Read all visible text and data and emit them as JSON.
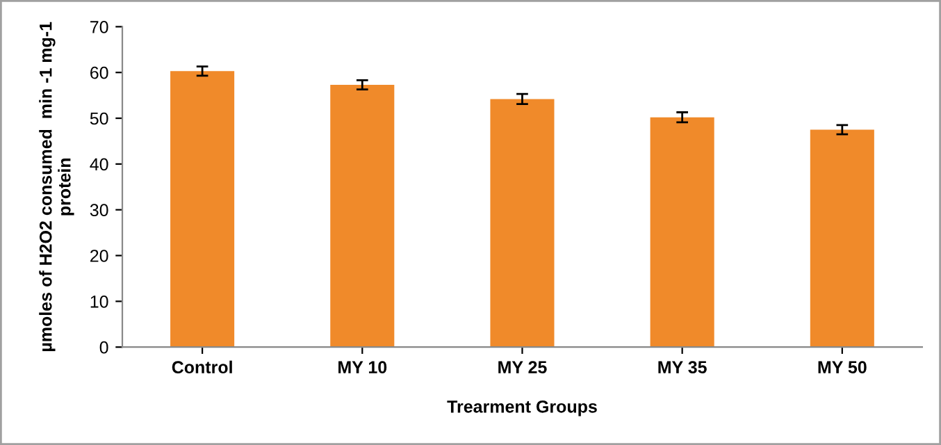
{
  "chart_data": {
    "type": "bar",
    "xlabel": "Trearment Groups",
    "ylabel": "µmoles of H2O2 consumed  min -1 mg-1\nprotein",
    "categories": [
      "Control",
      "MY 10",
      "MY 25",
      "MY 35",
      "MY 50"
    ],
    "values": [
      60.3,
      57.3,
      54.2,
      50.2,
      47.5
    ],
    "errors": [
      1.0,
      1.0,
      1.1,
      1.1,
      1.0
    ],
    "color": "#f08a2a",
    "ylim": [
      0,
      70
    ],
    "yticks": [
      0,
      10,
      20,
      30,
      40,
      50,
      60,
      70
    ],
    "grid": false,
    "legend": false
  }
}
